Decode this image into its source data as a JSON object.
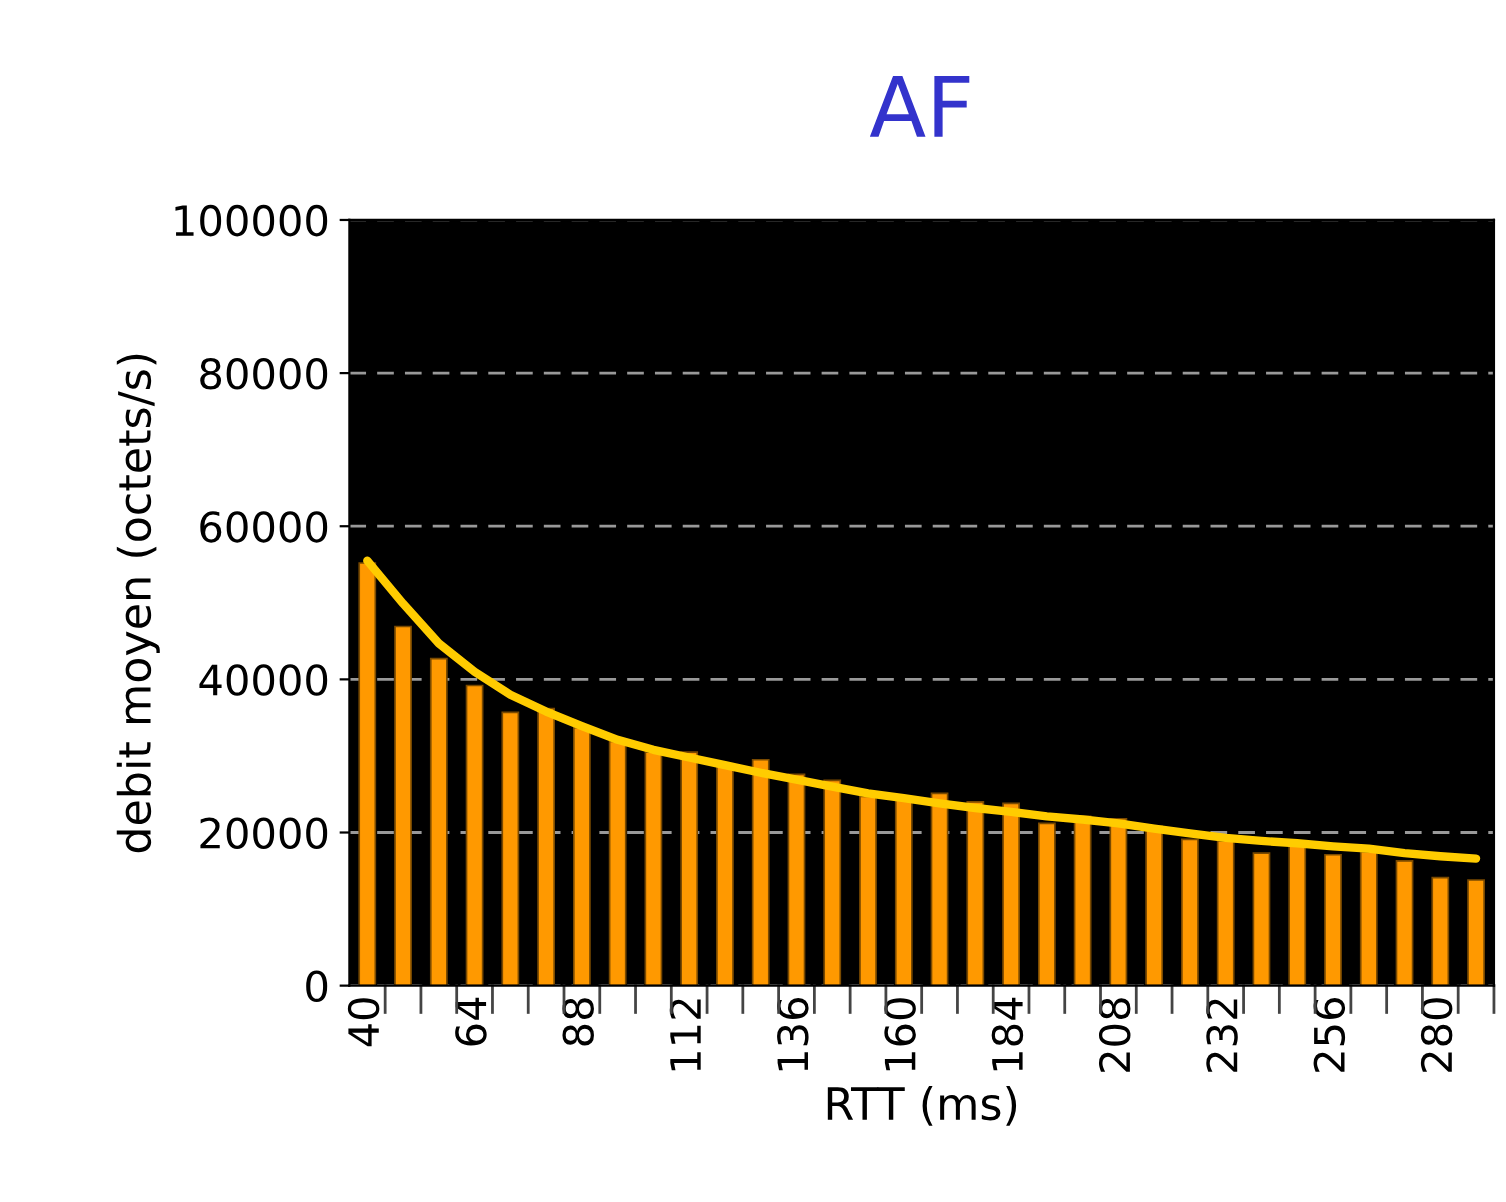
{
  "chart_data": {
    "type": "bar",
    "title": "AF",
    "xlabel": "RTT (ms)",
    "ylabel": "debit moyen (octets/s)",
    "categories": [
      "40",
      null,
      null,
      "64",
      null,
      null,
      "88",
      null,
      null,
      "112",
      null,
      null,
      "136",
      null,
      null,
      "160",
      null,
      null,
      "184",
      null,
      null,
      "208",
      null,
      null,
      "232",
      null,
      null,
      "256",
      null,
      null,
      "280",
      null
    ],
    "series": [
      {
        "color": "#ff9900",
        "values": [
          55200,
          46900,
          42700,
          39200,
          35700,
          36200,
          33700,
          31900,
          30500,
          30500,
          28600,
          29500,
          27600,
          26800,
          24700,
          24300,
          25100,
          24000,
          23800,
          21200,
          22100,
          21800,
          20800,
          19100,
          18900,
          17300,
          18400,
          17100,
          17500,
          16300,
          14100,
          13800
        ]
      },
      {
        "type": "line",
        "color": "#ffcc00",
        "line_style": "solid",
        "values": [
          55500,
          49900,
          44700,
          41000,
          38000,
          35800,
          33900,
          32100,
          30800,
          29800,
          28800,
          27800,
          26900,
          26000,
          25100,
          24500,
          23800,
          23200,
          22700,
          22100,
          21700,
          21200,
          20500,
          19900,
          19300,
          18900,
          18600,
          18200,
          17900,
          17300,
          16900,
          16600
        ]
      }
    ],
    "ylim": [
      0,
      100000
    ],
    "yticks": [
      0,
      20000,
      40000,
      60000,
      80000,
      100000
    ],
    "grid": "y",
    "legend": false
  }
}
